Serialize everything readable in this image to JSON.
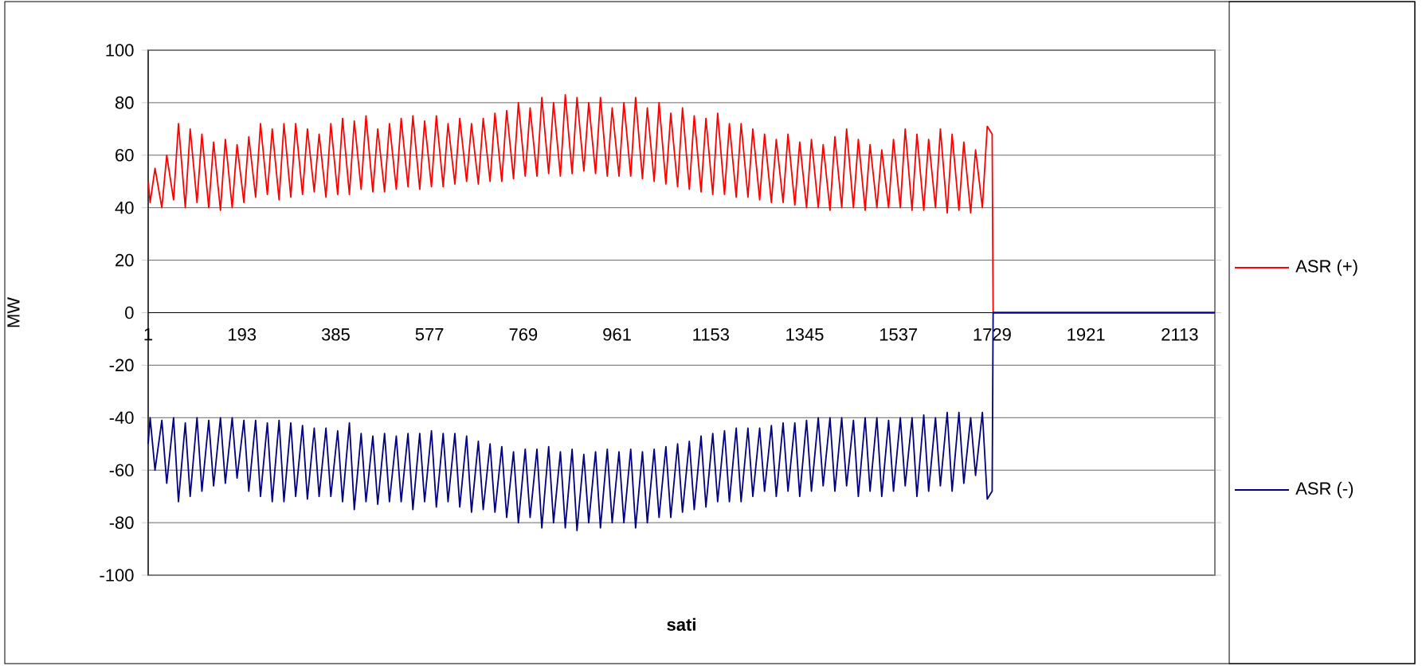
{
  "chart_data": {
    "type": "line",
    "xlabel": "sati",
    "ylabel": "MW",
    "x": [
      1,
      5,
      15,
      29,
      39,
      53,
      63,
      77,
      87,
      101,
      111,
      125,
      135,
      149,
      159,
      173,
      183,
      197,
      207,
      221,
      231,
      245,
      255,
      269,
      279,
      293,
      303,
      317,
      327,
      341,
      351,
      365,
      375,
      389,
      399,
      413,
      423,
      437,
      447,
      461,
      471,
      485,
      495,
      509,
      519,
      533,
      543,
      557,
      567,
      581,
      591,
      605,
      615,
      629,
      639,
      653,
      663,
      677,
      687,
      701,
      711,
      725,
      735,
      749,
      759,
      773,
      783,
      797,
      807,
      821,
      831,
      845,
      855,
      869,
      879,
      893,
      903,
      917,
      927,
      941,
      951,
      965,
      975,
      989,
      999,
      1013,
      1023,
      1037,
      1047,
      1061,
      1071,
      1085,
      1095,
      1109,
      1119,
      1133,
      1143,
      1157,
      1167,
      1181,
      1191,
      1205,
      1215,
      1229,
      1239,
      1253,
      1263,
      1277,
      1287,
      1301,
      1311,
      1325,
      1335,
      1349,
      1359,
      1373,
      1383,
      1397,
      1407,
      1421,
      1431,
      1445,
      1455,
      1469,
      1479,
      1493,
      1503,
      1517,
      1527,
      1541,
      1551,
      1565,
      1575,
      1589,
      1599,
      1613,
      1623,
      1637,
      1647,
      1661,
      1671,
      1685,
      1695,
      1709,
      1719,
      1729,
      1731,
      2185
    ],
    "series": [
      {
        "name": "ASR (+)",
        "color": "#ff0000",
        "values": [
          50,
          42,
          55,
          40,
          60,
          43,
          72,
          40,
          70,
          42,
          68,
          40,
          65,
          39,
          66,
          40,
          64,
          42,
          67,
          44,
          72,
          45,
          70,
          43,
          72,
          44,
          72,
          45,
          70,
          46,
          68,
          44,
          72,
          45,
          74,
          45,
          73,
          47,
          75,
          46,
          70,
          46,
          72,
          47,
          74,
          48,
          75,
          47,
          73,
          48,
          75,
          48,
          72,
          49,
          74,
          50,
          72,
          49,
          74,
          50,
          76,
          50,
          77,
          51,
          80,
          52,
          78,
          52,
          82,
          53,
          80,
          52,
          83,
          53,
          82,
          54,
          80,
          53,
          82,
          52,
          78,
          52,
          80,
          52,
          82,
          51,
          78,
          50,
          80,
          49,
          76,
          48,
          78,
          47,
          75,
          46,
          74,
          45,
          76,
          45,
          72,
          44,
          72,
          44,
          70,
          43,
          68,
          42,
          66,
          42,
          68,
          41,
          65,
          40,
          66,
          40,
          64,
          39,
          67,
          40,
          70,
          40,
          66,
          39,
          64,
          40,
          62,
          40,
          66,
          40,
          70,
          39,
          68,
          39,
          66,
          40,
          70,
          38,
          68,
          39,
          65,
          38,
          62,
          40,
          71,
          68,
          0,
          0
        ]
      },
      {
        "name": "ASR (-)",
        "color": "#000080",
        "values": [
          -50,
          -40,
          -60,
          -41,
          -65,
          -40,
          -72,
          -42,
          -70,
          -40,
          -68,
          -41,
          -66,
          -40,
          -65,
          -40,
          -63,
          -41,
          -68,
          -41,
          -70,
          -42,
          -72,
          -41,
          -72,
          -42,
          -70,
          -43,
          -71,
          -44,
          -70,
          -44,
          -70,
          -45,
          -72,
          -42,
          -75,
          -46,
          -72,
          -47,
          -73,
          -46,
          -72,
          -47,
          -72,
          -46,
          -75,
          -46,
          -72,
          -45,
          -74,
          -46,
          -72,
          -46,
          -74,
          -47,
          -76,
          -49,
          -75,
          -50,
          -76,
          -51,
          -78,
          -53,
          -80,
          -52,
          -78,
          -52,
          -82,
          -51,
          -80,
          -53,
          -82,
          -52,
          -83,
          -54,
          -80,
          -53,
          -82,
          -52,
          -80,
          -53,
          -80,
          -52,
          -82,
          -53,
          -80,
          -52,
          -78,
          -51,
          -78,
          -50,
          -76,
          -49,
          -75,
          -47,
          -74,
          -46,
          -72,
          -45,
          -72,
          -44,
          -72,
          -44,
          -70,
          -44,
          -68,
          -43,
          -70,
          -42,
          -68,
          -42,
          -70,
          -41,
          -68,
          -40,
          -66,
          -40,
          -68,
          -40,
          -66,
          -41,
          -70,
          -40,
          -68,
          -40,
          -70,
          -41,
          -68,
          -40,
          -66,
          -40,
          -70,
          -39,
          -68,
          -40,
          -66,
          -38,
          -68,
          -38,
          -65,
          -40,
          -62,
          -38,
          -71,
          -68,
          0,
          0
        ]
      }
    ],
    "xlim": [
      1,
      2185
    ],
    "xticks": [
      1,
      193,
      385,
      577,
      769,
      961,
      1153,
      1345,
      1537,
      1729,
      1921,
      2113
    ],
    "ylim": [
      -100,
      100
    ],
    "yticks": [
      -100,
      -80,
      -60,
      -40,
      -20,
      0,
      20,
      40,
      60,
      80,
      100
    ],
    "grid": "y",
    "legend": "right"
  }
}
